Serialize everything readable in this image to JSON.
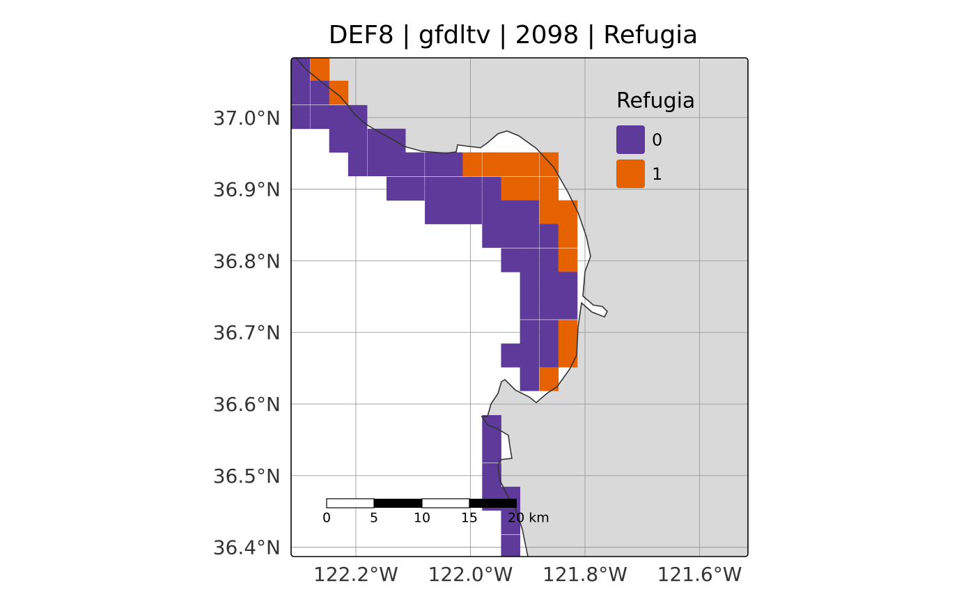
{
  "chart_data": {
    "type": "map",
    "title": "DEF8 | gfdltv | 2098 | Refugia",
    "xlim": [
      -122.313,
      -121.5155
    ],
    "ylim": [
      36.387,
      37.0835
    ],
    "xticks": [
      {
        "value": -122.2,
        "label": "122.2°W"
      },
      {
        "value": -122.0,
        "label": "122.0°W"
      },
      {
        "value": -121.8,
        "label": "121.8°W"
      },
      {
        "value": -121.6,
        "label": "121.6°W"
      }
    ],
    "yticks": [
      {
        "value": 36.4,
        "label": "36.4°N"
      },
      {
        "value": 36.5,
        "label": "36.5°N"
      },
      {
        "value": 36.6,
        "label": "36.6°N"
      },
      {
        "value": 36.7,
        "label": "36.7°N"
      },
      {
        "value": 36.8,
        "label": "36.8°N"
      },
      {
        "value": 36.9,
        "label": "36.9°N"
      },
      {
        "value": 37.0,
        "label": "37.0°N"
      }
    ],
    "grid": true,
    "legend": {
      "title": "Refugia",
      "items": [
        {
          "label": "0",
          "color": "#5e3a9b"
        },
        {
          "label": "1",
          "color": "#e66100"
        }
      ]
    },
    "scale_bar": {
      "labels": [
        "0",
        "5",
        "10",
        "15",
        "20 km"
      ]
    },
    "cells": [
      {
        "lon": -122.297,
        "lat": 37.068,
        "value": 0
      },
      {
        "lon": -122.263,
        "lat": 37.068,
        "value": 1
      },
      {
        "lon": -122.297,
        "lat": 37.035,
        "value": 0
      },
      {
        "lon": -122.263,
        "lat": 37.035,
        "value": 0
      },
      {
        "lon": -122.23,
        "lat": 37.035,
        "value": 1
      },
      {
        "lon": -122.297,
        "lat": 37.001,
        "value": 0
      },
      {
        "lon": -122.263,
        "lat": 37.001,
        "value": 0
      },
      {
        "lon": -122.23,
        "lat": 37.001,
        "value": 0
      },
      {
        "lon": -122.197,
        "lat": 37.001,
        "value": 0
      },
      {
        "lon": -122.23,
        "lat": 36.968,
        "value": 0
      },
      {
        "lon": -122.197,
        "lat": 36.968,
        "value": 0
      },
      {
        "lon": -122.163,
        "lat": 36.968,
        "value": 0
      },
      {
        "lon": -122.13,
        "lat": 36.968,
        "value": 0
      },
      {
        "lon": -122.197,
        "lat": 36.935,
        "value": 0
      },
      {
        "lon": -122.163,
        "lat": 36.935,
        "value": 0
      },
      {
        "lon": -122.13,
        "lat": 36.935,
        "value": 0
      },
      {
        "lon": -122.097,
        "lat": 36.935,
        "value": 0
      },
      {
        "lon": -122.063,
        "lat": 36.935,
        "value": 0
      },
      {
        "lon": -122.03,
        "lat": 36.935,
        "value": 0
      },
      {
        "lon": -121.997,
        "lat": 36.935,
        "value": 1
      },
      {
        "lon": -121.963,
        "lat": 36.935,
        "value": 1
      },
      {
        "lon": -121.93,
        "lat": 36.935,
        "value": 1
      },
      {
        "lon": -121.897,
        "lat": 36.935,
        "value": 1
      },
      {
        "lon": -121.863,
        "lat": 36.935,
        "value": 1
      },
      {
        "lon": -122.13,
        "lat": 36.901,
        "value": 0
      },
      {
        "lon": -122.097,
        "lat": 36.901,
        "value": 0
      },
      {
        "lon": -122.063,
        "lat": 36.901,
        "value": 0
      },
      {
        "lon": -122.03,
        "lat": 36.901,
        "value": 0
      },
      {
        "lon": -121.997,
        "lat": 36.901,
        "value": 0
      },
      {
        "lon": -121.963,
        "lat": 36.901,
        "value": 0
      },
      {
        "lon": -121.93,
        "lat": 36.901,
        "value": 1
      },
      {
        "lon": -121.897,
        "lat": 36.901,
        "value": 1
      },
      {
        "lon": -121.863,
        "lat": 36.901,
        "value": 1
      },
      {
        "lon": -122.063,
        "lat": 36.868,
        "value": 0
      },
      {
        "lon": -122.03,
        "lat": 36.868,
        "value": 0
      },
      {
        "lon": -121.997,
        "lat": 36.868,
        "value": 0
      },
      {
        "lon": -121.963,
        "lat": 36.868,
        "value": 0
      },
      {
        "lon": -121.93,
        "lat": 36.868,
        "value": 0
      },
      {
        "lon": -121.897,
        "lat": 36.868,
        "value": 0
      },
      {
        "lon": -121.863,
        "lat": 36.868,
        "value": 1
      },
      {
        "lon": -121.83,
        "lat": 36.868,
        "value": 1
      },
      {
        "lon": -121.963,
        "lat": 36.835,
        "value": 0
      },
      {
        "lon": -121.93,
        "lat": 36.835,
        "value": 0
      },
      {
        "lon": -121.897,
        "lat": 36.835,
        "value": 0
      },
      {
        "lon": -121.863,
        "lat": 36.835,
        "value": 0
      },
      {
        "lon": -121.83,
        "lat": 36.835,
        "value": 1
      },
      {
        "lon": -121.93,
        "lat": 36.801,
        "value": 0
      },
      {
        "lon": -121.897,
        "lat": 36.801,
        "value": 0
      },
      {
        "lon": -121.863,
        "lat": 36.801,
        "value": 0
      },
      {
        "lon": -121.83,
        "lat": 36.801,
        "value": 1
      },
      {
        "lon": -121.897,
        "lat": 36.768,
        "value": 0
      },
      {
        "lon": -121.863,
        "lat": 36.768,
        "value": 0
      },
      {
        "lon": -121.83,
        "lat": 36.768,
        "value": 0
      },
      {
        "lon": -121.897,
        "lat": 36.735,
        "value": 0
      },
      {
        "lon": -121.863,
        "lat": 36.735,
        "value": 0
      },
      {
        "lon": -121.83,
        "lat": 36.735,
        "value": 0
      },
      {
        "lon": -121.897,
        "lat": 36.701,
        "value": 0
      },
      {
        "lon": -121.863,
        "lat": 36.701,
        "value": 0
      },
      {
        "lon": -121.83,
        "lat": 36.701,
        "value": 1
      },
      {
        "lon": -121.93,
        "lat": 36.668,
        "value": 0
      },
      {
        "lon": -121.897,
        "lat": 36.668,
        "value": 0
      },
      {
        "lon": -121.863,
        "lat": 36.668,
        "value": 0
      },
      {
        "lon": -121.83,
        "lat": 36.668,
        "value": 1
      },
      {
        "lon": -121.897,
        "lat": 36.635,
        "value": 0
      },
      {
        "lon": -121.863,
        "lat": 36.635,
        "value": 1
      },
      {
        "lon": -121.963,
        "lat": 36.568,
        "value": 0
      },
      {
        "lon": -121.963,
        "lat": 36.535,
        "value": 0
      },
      {
        "lon": -121.963,
        "lat": 36.501,
        "value": 0
      },
      {
        "lon": -121.963,
        "lat": 36.468,
        "value": 0
      },
      {
        "lon": -121.93,
        "lat": 36.468,
        "value": 0
      },
      {
        "lon": -121.93,
        "lat": 36.435,
        "value": 0
      },
      {
        "lon": -121.93,
        "lat": 36.401,
        "value": 0
      }
    ]
  }
}
